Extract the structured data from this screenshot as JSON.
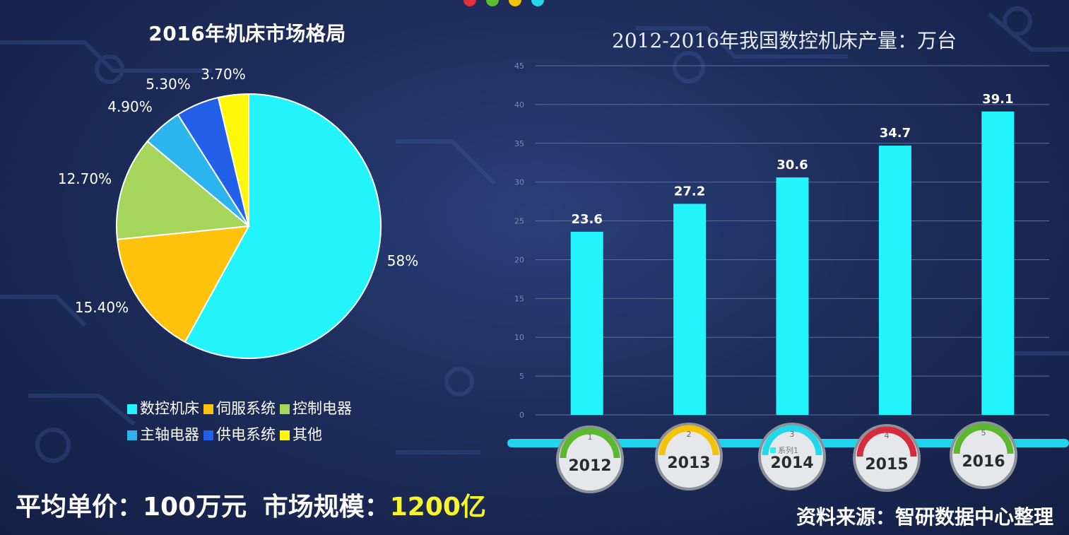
{
  "pie": {
    "title": "2016年机床市场格局",
    "slices": [
      {
        "name": "数控机床",
        "label": "58%",
        "value": 58,
        "color": "#23f3fd"
      },
      {
        "name": "伺服系统",
        "label": "15.40%",
        "value": 15.4,
        "color": "#fec20c"
      },
      {
        "name": "控制电器",
        "label": "12.70%",
        "value": 12.7,
        "color": "#a5d55b"
      },
      {
        "name": "主轴电器",
        "label": "4.90%",
        "value": 4.9,
        "color": "#2cb4ee"
      },
      {
        "name": "供电系统",
        "label": "5.30%",
        "value": 5.3,
        "color": "#2360ea"
      },
      {
        "name": "其他",
        "label": "3.70%",
        "value": 3.7,
        "color": "#fff70a"
      }
    ]
  },
  "chart_data": {
    "type": "bar",
    "title": "2012-2016年我国数控机床产量：万台",
    "categories": [
      "2012",
      "2013",
      "2014",
      "2015",
      "2016"
    ],
    "values": [
      23.6,
      27.2,
      30.6,
      34.7,
      39.1
    ],
    "data_labels": [
      "23.6",
      "27.2",
      "30.6",
      "34.7",
      "39.1"
    ],
    "ylim": [
      0,
      45
    ],
    "yticks": [
      "0",
      "5",
      "10",
      "15",
      "20",
      "25",
      "30",
      "35",
      "40",
      "45"
    ],
    "grid": true,
    "bar_color": "#23f3fd",
    "gauge_numbers": [
      "1",
      "2",
      "3",
      "4",
      "5"
    ],
    "gauge_colors": [
      "#5cb82e",
      "#f5c20a",
      "#23d8ea",
      "#d52b3c",
      "#5cb82e"
    ],
    "legend_text": "系列1"
  },
  "footer": {
    "price_label": "平均单价：100万元",
    "scale_label": "市场规模：",
    "scale_value": "1200亿",
    "source": "资料来源：智研数据中心整理"
  }
}
